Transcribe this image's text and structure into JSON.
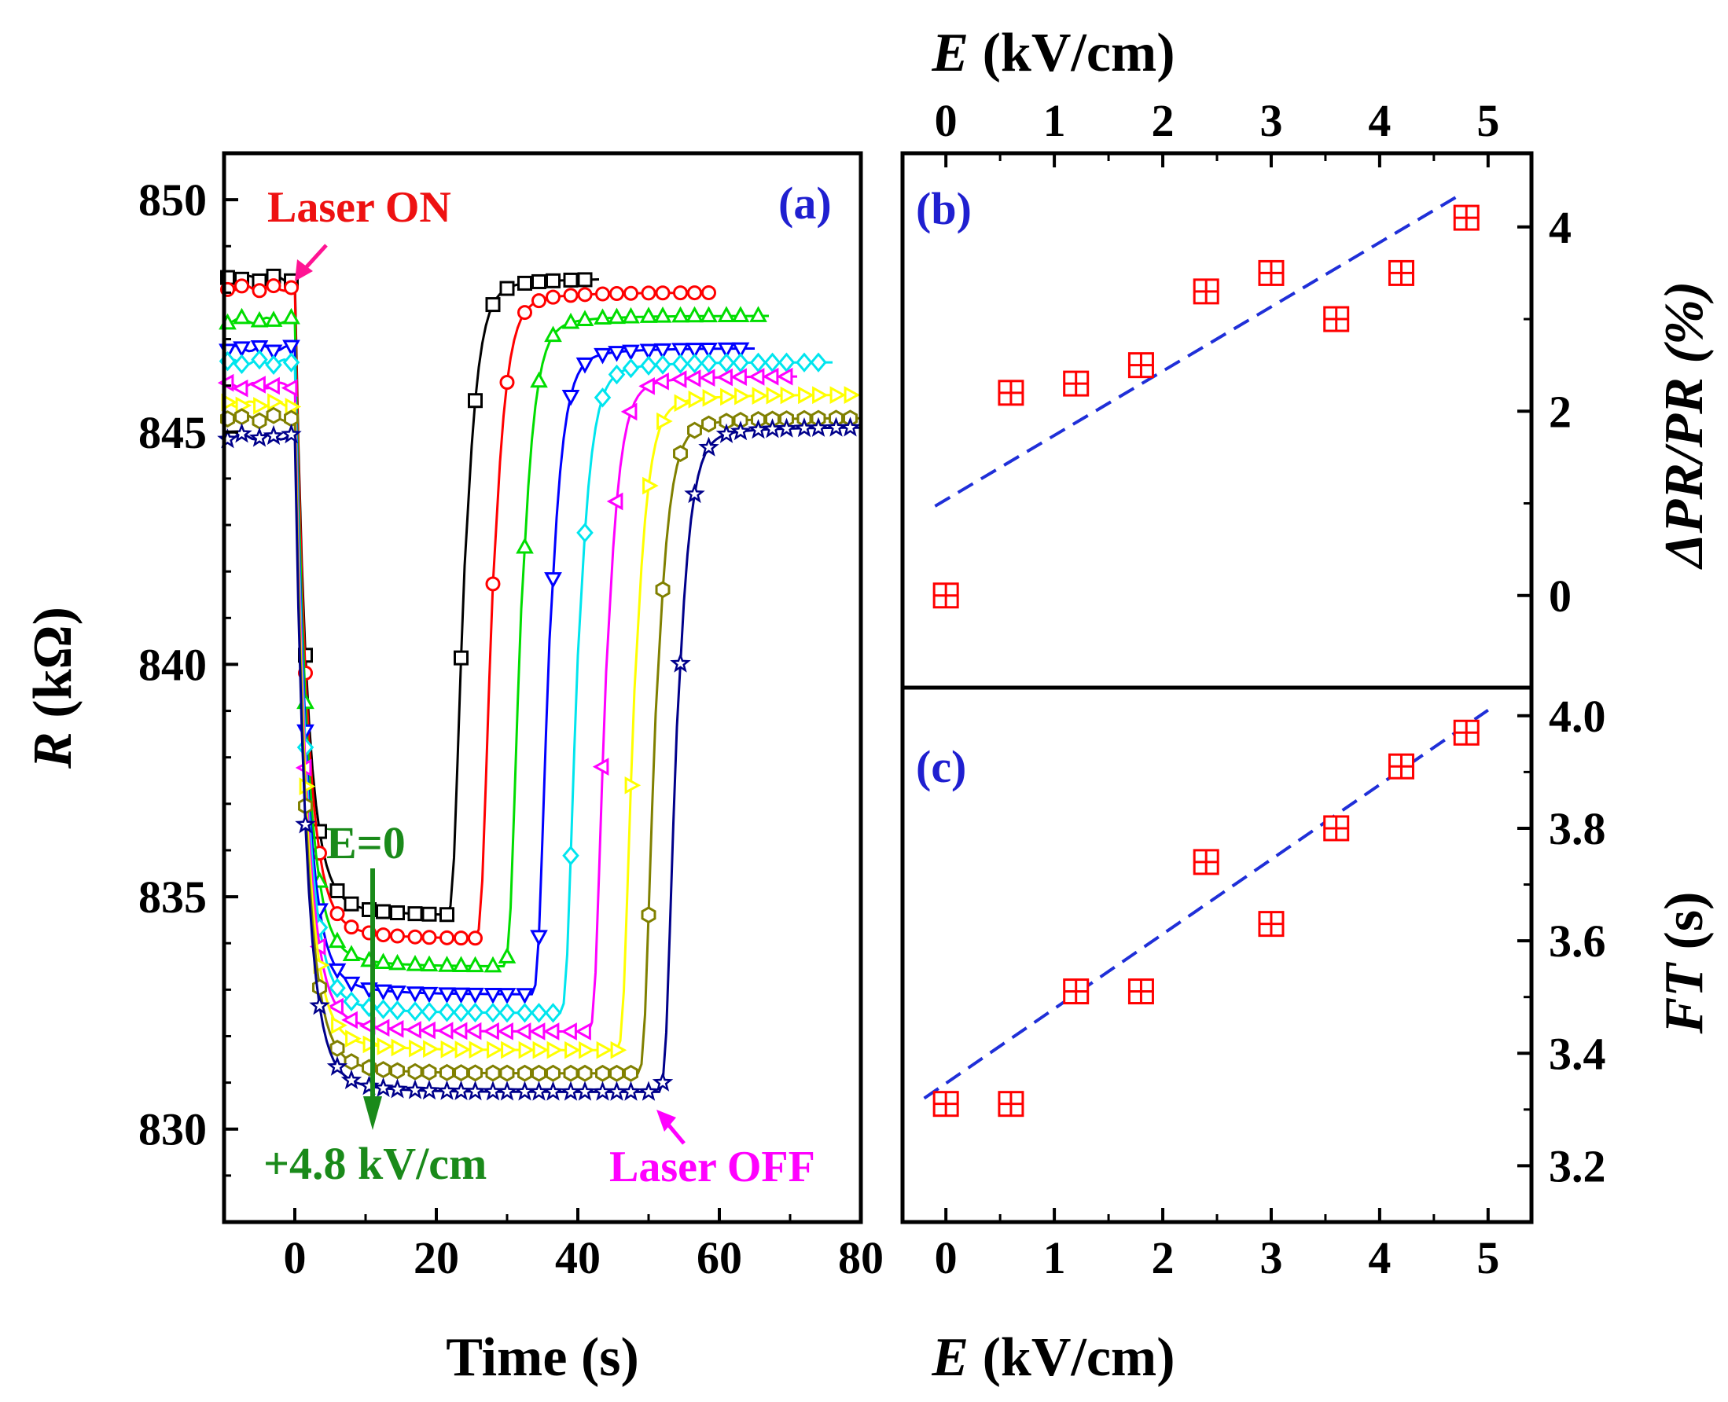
{
  "chart_data": [
    {
      "panel": "(a)",
      "type": "line",
      "xlabel": "Time (s)",
      "ylabel_italic": "R",
      "ylabel_rest": " (kΩ)",
      "xlim": [
        -10,
        80
      ],
      "ylim": [
        828,
        851
      ],
      "xticks": [
        "0",
        "20",
        "40",
        "60",
        "80"
      ],
      "yticks": [
        "830",
        "835",
        "840",
        "845",
        "850"
      ],
      "annotations": {
        "laser_on": "Laser ON",
        "laser_off": "Laser OFF",
        "e_zero": "E=0",
        "e_max": "+4.8 kV/cm"
      },
      "series": [
        {
          "color": "#000000",
          "marker": "square",
          "before": 848.3,
          "low": 834.6,
          "rise_t": 22,
          "after": 848.3,
          "t_end": 43
        },
        {
          "color": "#ff0000",
          "marker": "circle",
          "before": 848.1,
          "low": 834.1,
          "rise_t": 26,
          "after": 848.0,
          "t_end": 59
        },
        {
          "color": "#00dd00",
          "marker": "triangle-up",
          "before": 847.4,
          "low": 833.5,
          "rise_t": 30,
          "after": 847.5,
          "t_end": 67
        },
        {
          "color": "#0000ff",
          "marker": "triangle-down",
          "before": 846.8,
          "low": 832.9,
          "rise_t": 34,
          "after": 846.8,
          "t_end": 65
        },
        {
          "color": "#00e5ee",
          "marker": "diamond",
          "before": 846.5,
          "low": 832.5,
          "rise_t": 38,
          "after": 846.5,
          "t_end": 76
        },
        {
          "color": "#ff00ff",
          "marker": "triangle-left",
          "before": 846.0,
          "low": 832.1,
          "rise_t": 42,
          "after": 846.2,
          "t_end": 71
        },
        {
          "color": "#ffff00",
          "marker": "triangle-right",
          "before": 845.6,
          "low": 831.7,
          "rise_t": 46,
          "after": 845.8,
          "t_end": 80
        },
        {
          "color": "#808000",
          "marker": "hexagon",
          "before": 845.3,
          "low": 831.2,
          "rise_t": 49,
          "after": 845.3,
          "t_end": 80
        },
        {
          "color": "#00008b",
          "marker": "star",
          "before": 844.9,
          "low": 830.8,
          "rise_t": 52,
          "after": 845.1,
          "t_end": 80
        }
      ]
    },
    {
      "panel": "(b)",
      "type": "scatter",
      "xlabel_top_italic": "E",
      "xlabel_top_rest": " (kV/cm)",
      "ylabel": "ΔPR/PR (%)",
      "xlim": [
        -0.4,
        5.4
      ],
      "ylim": [
        -1,
        4.8
      ],
      "xticks": [
        "0",
        "1",
        "2",
        "3",
        "4",
        "5"
      ],
      "yticks": [
        "0",
        "2",
        "4"
      ],
      "x": [
        0,
        0.6,
        1.2,
        1.8,
        2.4,
        3.0,
        3.6,
        4.2,
        4.8
      ],
      "y": [
        0.0,
        2.2,
        2.3,
        2.5,
        3.3,
        3.5,
        3.0,
        3.5,
        4.1
      ],
      "fit": {
        "x": [
          -0.1,
          4.7
        ],
        "y": [
          0.97,
          4.32
        ]
      },
      "marker_color": "#ff0000",
      "fit_color": "#1f2fd8"
    },
    {
      "panel": "(c)",
      "type": "scatter",
      "xlabel_italic": "E",
      "xlabel_rest": " (kV/cm)",
      "ylabel_italic": "FT",
      "ylabel_rest": " (s)",
      "xlim": [
        -0.4,
        5.4
      ],
      "ylim": [
        3.1,
        4.05
      ],
      "xticks": [
        "0",
        "1",
        "2",
        "3",
        "4",
        "5"
      ],
      "yticks": [
        "3.2",
        "3.4",
        "3.6",
        "3.8",
        "4.0"
      ],
      "x": [
        0,
        0.6,
        1.2,
        1.8,
        2.4,
        3.0,
        3.6,
        4.2,
        4.8
      ],
      "y": [
        3.31,
        3.31,
        3.51,
        3.51,
        3.74,
        3.63,
        3.8,
        3.91,
        3.97
      ],
      "fit": {
        "x": [
          -0.2,
          5.0
        ],
        "y": [
          3.32,
          4.01
        ]
      },
      "marker_color": "#ff0000",
      "fit_color": "#1f2fd8"
    }
  ],
  "colors": {
    "annotation_red": "#ee1111",
    "annotation_magenta": "#ff00ff",
    "annotation_green": "#1a8a1a",
    "panel_tag_blue": "#1f1fd0"
  }
}
